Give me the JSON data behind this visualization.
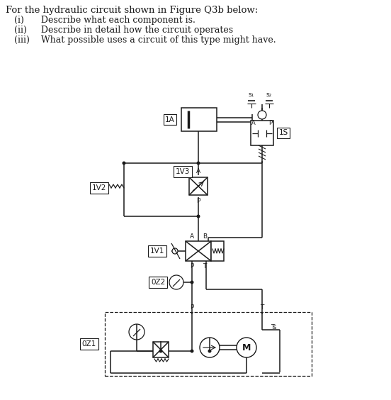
{
  "title_text": "For the hydraulic circuit shown in Figure Q3b below:",
  "item1": "(i)      Describe what each component is.",
  "item2": "(ii)     Describe in detail how the circuit operates",
  "item3": "(iii)    What possible uses a circuit of this type might have.",
  "bg_color": "#ffffff",
  "line_color": "#1a1a1a",
  "font_size_title": 9.5,
  "font_size_item": 9.0,
  "font_size_label": 7.5,
  "font_size_port": 6.5
}
